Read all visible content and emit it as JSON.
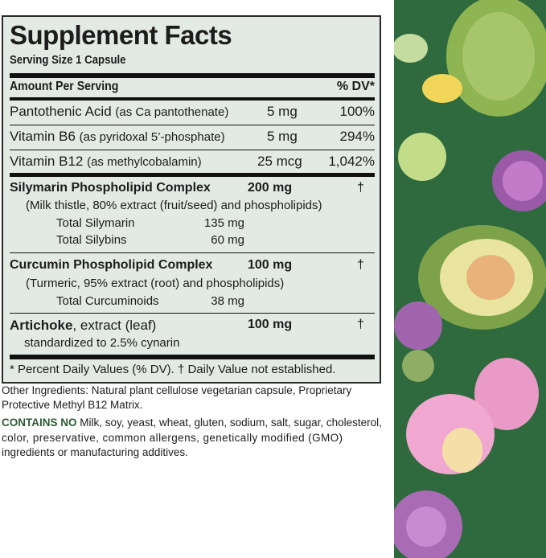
{
  "title": "Supplement Facts",
  "serving_size": "Serving Size 1 Capsule",
  "header": {
    "amount": "Amount Per Serving",
    "dv": "% DV*"
  },
  "vitamins": [
    {
      "name": "Pantothenic Acid",
      "detail": "(as Ca pantothenate)",
      "amount": "5 mg",
      "dv": "100%"
    },
    {
      "name": "Vitamin B6",
      "detail": "(as pyridoxal 5’-phosphate)",
      "amount": "5 mg",
      "dv": "294%"
    },
    {
      "name": "Vitamin B12",
      "detail": "(as methylcobalamin)",
      "amount": "25 mcg",
      "dv": "1,042%"
    }
  ],
  "silymarin": {
    "name": "Silymarin Phospholipid Complex",
    "amount": "200 mg",
    "dv": "†",
    "detail": "(Milk thistle, 80% extract (fruit/seed) and phospholipids)",
    "subs": [
      {
        "name": "Total Silymarin",
        "amount": "135 mg"
      },
      {
        "name": "Total Silybins",
        "amount": "60 mg"
      }
    ]
  },
  "curcumin": {
    "name": "Curcumin Phospholipid Complex",
    "amount": "100 mg",
    "dv": "†",
    "detail": "(Turmeric, 95% extract (root) and phospholipids)",
    "subs": [
      {
        "name": "Total Curcuminoids",
        "amount": "38 mg"
      }
    ]
  },
  "artichoke": {
    "name": "Artichoke",
    "detail": ", extract (leaf)",
    "amount": "100 mg",
    "dv": "†",
    "sub": "standardized to 2.5% cynarin"
  },
  "footnote": "* Percent Daily Values (% DV). † Daily Value not established.",
  "other_ingredients_1": "Other Ingredients: Natural plant cellulose vegetarian capsule, Proprietary",
  "other_ingredients_2": "Protective Methyl B12 Matrix.",
  "contains_no_label": "CONTAINS NO",
  "contains_no_1": " Milk, soy, yeast, wheat, gluten, sodium, salt, sugar, cholesterol,",
  "contains_no_2": "color, preservative, common allergens, genetically modified (GMO)",
  "contains_no_3": "ingredients or manufacturing additives.",
  "colors": {
    "label_bg": "#e3eae4",
    "panel_green": "#2f6a3e",
    "contains_no": "#2d5a35"
  }
}
